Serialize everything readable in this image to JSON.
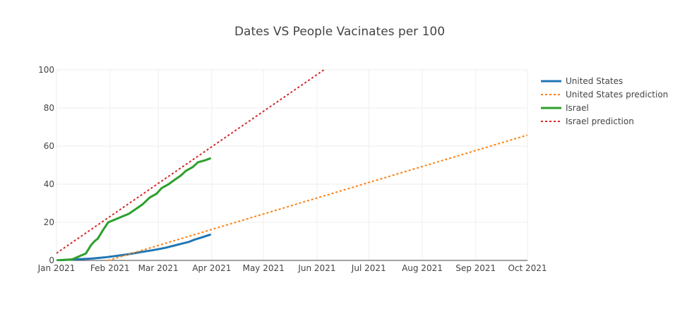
{
  "chart_data": {
    "type": "line",
    "title": "Dates VS People Vacinates per 100",
    "xlabel": "",
    "ylabel": "",
    "x_axis_type": "date",
    "xlim": [
      "2021-01-01",
      "2021-10-01"
    ],
    "ylim": [
      0,
      100
    ],
    "x_ticks": [
      {
        "date": "2021-01-01",
        "label": "Jan 2021"
      },
      {
        "date": "2021-02-01",
        "label": "Feb 2021"
      },
      {
        "date": "2021-03-01",
        "label": "Mar 2021"
      },
      {
        "date": "2021-04-01",
        "label": "Apr 2021"
      },
      {
        "date": "2021-05-01",
        "label": "May 2021"
      },
      {
        "date": "2021-06-01",
        "label": "Jun 2021"
      },
      {
        "date": "2021-07-01",
        "label": "Jul 2021"
      },
      {
        "date": "2021-08-01",
        "label": "Aug 2021"
      },
      {
        "date": "2021-09-01",
        "label": "Sep 2021"
      },
      {
        "date": "2021-10-01",
        "label": "Oct 2021"
      }
    ],
    "y_ticks": [
      0,
      20,
      40,
      60,
      80,
      100
    ],
    "grid": true,
    "legend_position": "top-right",
    "series": [
      {
        "name": "United States",
        "color": "#1f77b4",
        "dash": "solid",
        "points": [
          [
            "2021-01-01",
            0.0
          ],
          [
            "2021-01-08",
            0.4
          ],
          [
            "2021-01-15",
            0.7
          ],
          [
            "2021-01-22",
            1.0
          ],
          [
            "2021-01-29",
            1.6
          ],
          [
            "2021-02-05",
            2.4
          ],
          [
            "2021-02-12",
            3.3
          ],
          [
            "2021-02-19",
            4.4
          ],
          [
            "2021-02-26",
            5.4
          ],
          [
            "2021-03-05",
            6.6
          ],
          [
            "2021-03-12",
            8.2
          ],
          [
            "2021-03-19",
            9.8
          ],
          [
            "2021-03-22",
            10.9
          ],
          [
            "2021-03-26",
            12.0
          ],
          [
            "2021-03-31",
            13.5
          ]
        ]
      },
      {
        "name": "United States prediction",
        "color": "#ff7f0e",
        "dash": "dot",
        "points": [
          [
            "2021-01-31",
            0.0
          ],
          [
            "2021-10-01",
            65.8
          ]
        ]
      },
      {
        "name": "Israel",
        "color": "#2ca02c",
        "dash": "solid",
        "points": [
          [
            "2021-01-01",
            0.0
          ],
          [
            "2021-01-10",
            0.5
          ],
          [
            "2021-01-15",
            2.5
          ],
          [
            "2021-01-18",
            3.6
          ],
          [
            "2021-01-21",
            8.0
          ],
          [
            "2021-01-23",
            10.0
          ],
          [
            "2021-01-25",
            11.5
          ],
          [
            "2021-01-28",
            16.0
          ],
          [
            "2021-01-31",
            20.0
          ],
          [
            "2021-02-04",
            21.5
          ],
          [
            "2021-02-08",
            23.0
          ],
          [
            "2021-02-12",
            24.5
          ],
          [
            "2021-02-16",
            27.0
          ],
          [
            "2021-02-20",
            29.5
          ],
          [
            "2021-02-24",
            33.0
          ],
          [
            "2021-02-28",
            35.0
          ],
          [
            "2021-03-03",
            38.0
          ],
          [
            "2021-03-07",
            40.0
          ],
          [
            "2021-03-10",
            42.0
          ],
          [
            "2021-03-14",
            44.5
          ],
          [
            "2021-03-17",
            47.0
          ],
          [
            "2021-03-21",
            49.0
          ],
          [
            "2021-03-24",
            51.5
          ],
          [
            "2021-03-28",
            52.5
          ],
          [
            "2021-03-31",
            53.5
          ]
        ]
      },
      {
        "name": "Israel prediction",
        "color": "#d62728",
        "dash": "dot",
        "points": [
          [
            "2021-01-01",
            3.8
          ],
          [
            "2021-06-05",
            100.0
          ]
        ]
      }
    ]
  }
}
